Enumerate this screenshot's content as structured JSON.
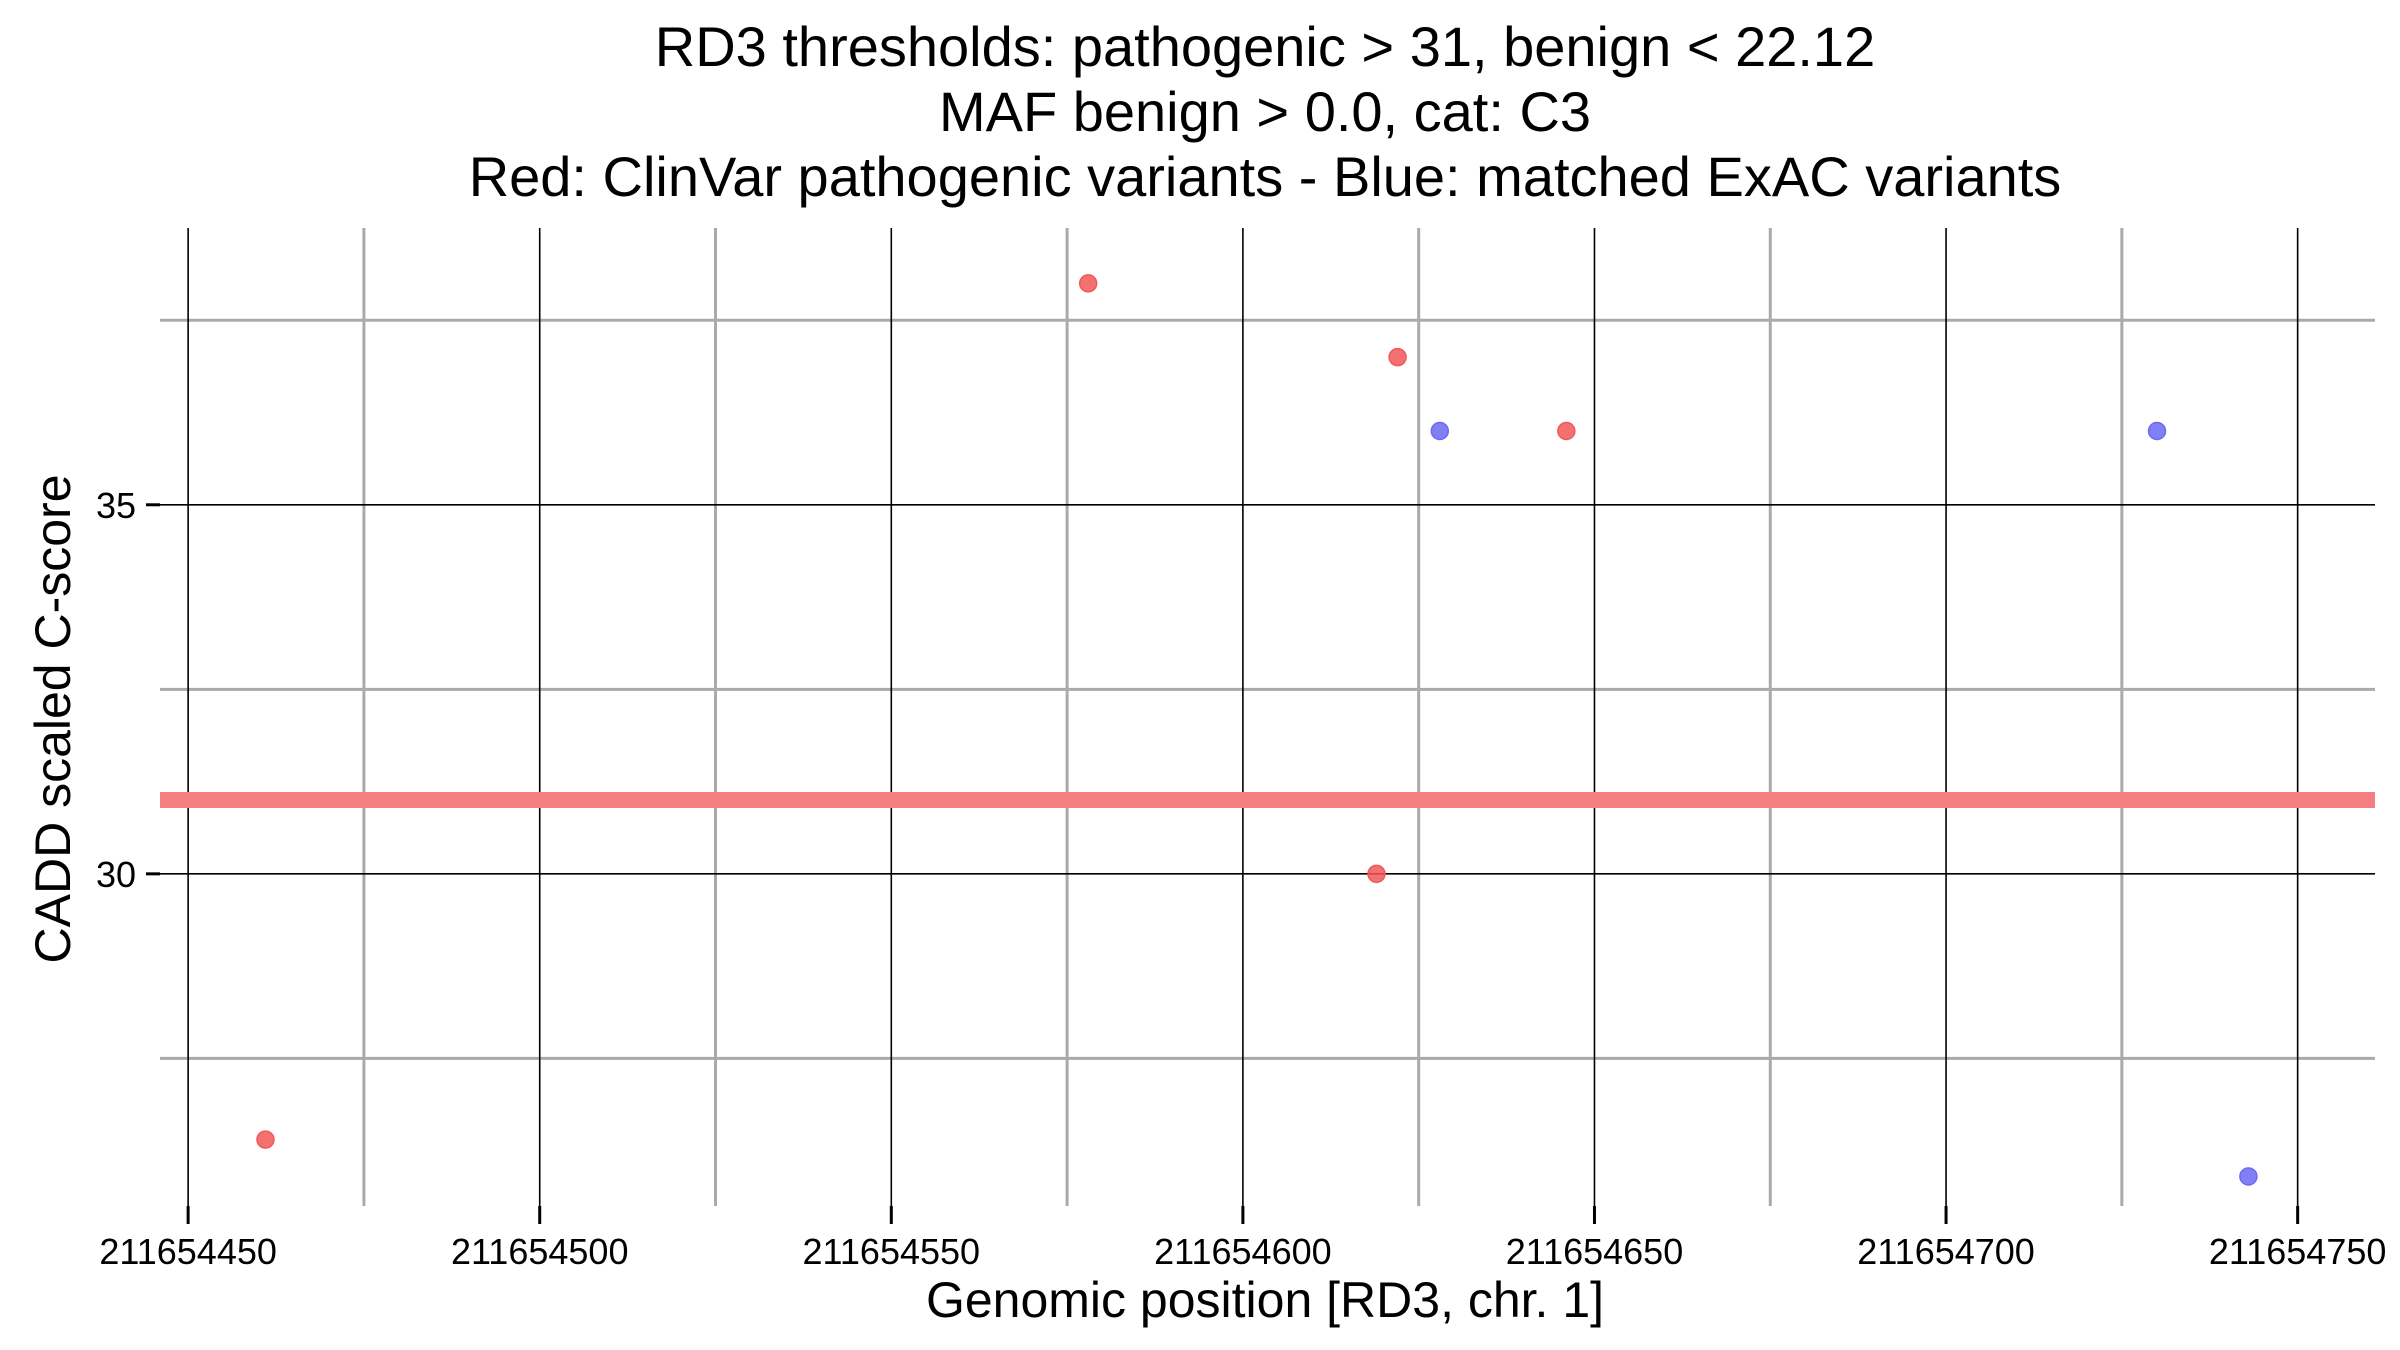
{
  "chart_data": {
    "type": "scatter",
    "title_lines": [
      "RD3 thresholds: pathogenic > 31, benign < 22.12",
      "MAF benign > 0.0, cat: C3",
      "Red: ClinVar pathogenic variants - Blue: matched ExAC variants"
    ],
    "xlabel": "Genomic position [RD3, chr. 1]",
    "ylabel": "CADD scaled C-score",
    "xlim": [
      211654446,
      211654761
    ],
    "ylim": [
      25.5,
      38.75
    ],
    "x_major_ticks": [
      211654450,
      211654500,
      211654550,
      211654600,
      211654650,
      211654700,
      211654750
    ],
    "x_tick_labels": [
      "211654450",
      "211654500",
      "211654550",
      "211654600",
      "211654650",
      "211654700",
      "211654750"
    ],
    "x_minor_gridlines": [
      211654475,
      211654525,
      211654575,
      211654625,
      211654675,
      211654725
    ],
    "y_major_ticks": [
      30,
      35
    ],
    "y_tick_labels": [
      "30",
      "35"
    ],
    "y_minor_gridlines": [
      27.5,
      32.5,
      37.5
    ],
    "threshold_line": {
      "y": 31,
      "color": "#f47f82"
    },
    "series": [
      {
        "name": "ClinVar pathogenic variants",
        "color": "#f25858",
        "points": [
          {
            "x": 211654461,
            "y": 26.4
          },
          {
            "x": 211654578,
            "y": 38.0
          },
          {
            "x": 211654619,
            "y": 30.0
          },
          {
            "x": 211654622,
            "y": 37.0
          },
          {
            "x": 211654646,
            "y": 36.0
          }
        ]
      },
      {
        "name": "matched ExAC variants",
        "color": "#6a6af2",
        "points": [
          {
            "x": 211654628,
            "y": 36.0
          },
          {
            "x": 211654730,
            "y": 36.0
          },
          {
            "x": 211654743,
            "y": 25.9
          }
        ]
      }
    ],
    "grid": true,
    "legend": "none"
  }
}
